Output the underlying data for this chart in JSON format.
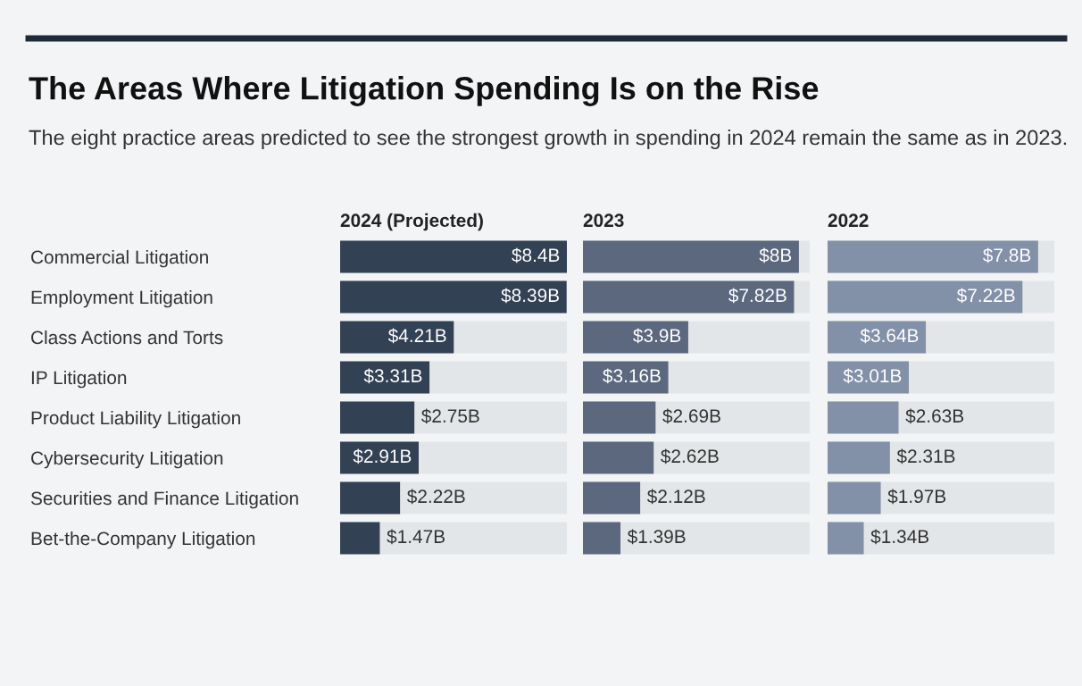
{
  "chart_data": [
    {
      "type": "bar",
      "orientation": "horizontal",
      "title": "2024 (Projected)",
      "annotations": [
        "The Areas Where Litigation Spending Is on the Rise",
        "The eight practice areas predicted to see the strongest growth in spending in 2024 remain the same as in 2023."
      ],
      "categories": [
        "Commercial Litigation",
        "Employment Litigation",
        "Class Actions and Torts",
        "IP Litigation",
        "Product Liability Litigation",
        "Cybersecurity Litigation",
        "Securities and Finance Litigation",
        "Bet-the-Company Litigation"
      ],
      "values": [
        8.4,
        8.39,
        4.21,
        3.31,
        2.75,
        2.91,
        2.22,
        1.47
      ],
      "value_labels": [
        "$8.4B",
        "$8.39B",
        "$4.21B",
        "$3.31B",
        "$2.75B",
        "$2.91B",
        "$2.22B",
        "$1.47B"
      ],
      "color": "#334155",
      "xlim": [
        0,
        8.4
      ],
      "tick_labels": "y"
    },
    {
      "type": "bar",
      "orientation": "horizontal",
      "title": "2023",
      "categories": [
        null,
        null,
        null,
        null,
        null,
        null,
        null,
        null
      ],
      "values": [
        8,
        7.82,
        3.9,
        3.16,
        2.69,
        2.62,
        2.12,
        1.39
      ],
      "value_labels": [
        "$8B",
        "$7.82B",
        "$3.9B",
        "$3.16B",
        "$2.69B",
        "$2.62B",
        "$2.12B",
        "$1.39B"
      ],
      "color": "#5b687e",
      "xlim": [
        0,
        8.4
      ],
      "tick_labels": false
    },
    {
      "type": "bar",
      "orientation": "horizontal",
      "title": "2022",
      "categories": [
        null,
        null,
        null,
        null,
        null,
        null,
        null,
        null
      ],
      "values": [
        7.8,
        7.22,
        3.64,
        3.01,
        2.63,
        2.31,
        1.97,
        1.34
      ],
      "value_labels": [
        "$7.8B",
        "$7.22B",
        "$3.64B",
        "$3.01B",
        "$2.63B",
        "$2.31B",
        "$1.97B",
        "$1.34B"
      ],
      "color": "#8290a8",
      "xlim": [
        0,
        8.4
      ],
      "tick_labels": false
    }
  ]
}
